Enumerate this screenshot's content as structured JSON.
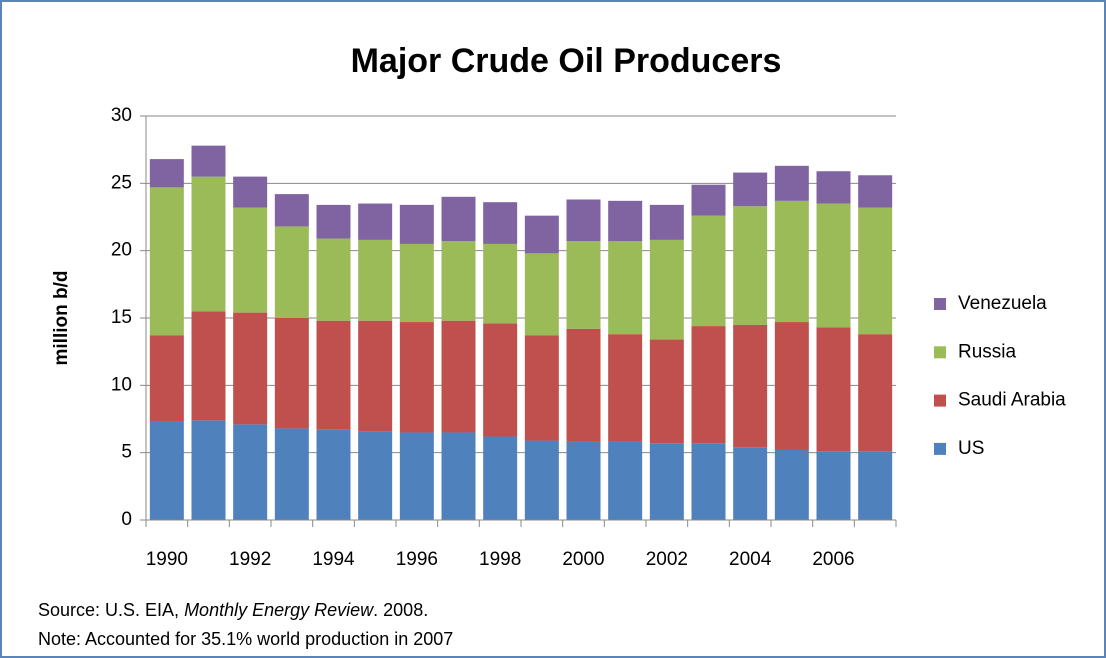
{
  "chart_data": {
    "type": "stacked_bar",
    "title": "Major Crude Oil Producers",
    "y_label": "million b/d",
    "categories": [
      "1990",
      null,
      "1992",
      null,
      "1994",
      null,
      "1996",
      null,
      "1998",
      null,
      "2000",
      null,
      "2002",
      null,
      "2004",
      null,
      "2006",
      null
    ],
    "series": [
      {
        "name": "US",
        "color": "#4f81bd",
        "values": [
          7.35,
          7.4,
          7.1,
          6.8,
          6.7,
          6.6,
          6.5,
          6.5,
          6.2,
          5.9,
          5.8,
          5.8,
          5.7,
          5.7,
          5.4,
          5.2,
          5.1,
          5.1
        ]
      },
      {
        "name": "Saudi Arabia",
        "color": "#c0504d",
        "values": [
          6.35,
          8.1,
          8.3,
          8.2,
          8.1,
          8.2,
          8.2,
          8.3,
          8.4,
          7.8,
          8.4,
          8.0,
          7.7,
          8.7,
          9.1,
          9.5,
          9.2,
          8.7
        ]
      },
      {
        "name": "Russia",
        "color": "#9bbb59",
        "values": [
          11.0,
          10.0,
          7.8,
          6.8,
          6.1,
          6.0,
          5.8,
          5.9,
          5.9,
          6.1,
          6.5,
          6.9,
          7.4,
          8.2,
          8.8,
          9.0,
          9.2,
          9.4
        ]
      },
      {
        "name": "Venezuela",
        "color": "#8064a2",
        "values": [
          2.1,
          2.3,
          2.3,
          2.4,
          2.5,
          2.7,
          2.9,
          3.3,
          3.1,
          2.8,
          3.1,
          3.0,
          2.6,
          2.3,
          2.5,
          2.6,
          2.4,
          2.4
        ]
      }
    ],
    "ylim": [
      0,
      30
    ],
    "yticks": [
      0,
      5,
      10,
      15,
      20,
      25,
      30
    ],
    "grid": true,
    "legend": "right",
    "source": [
      "Source: U.S. EIA, ",
      "Monthly Energy Review",
      ". 2008."
    ],
    "note": "Note: Accounted for 35.1% world production in 2007"
  }
}
